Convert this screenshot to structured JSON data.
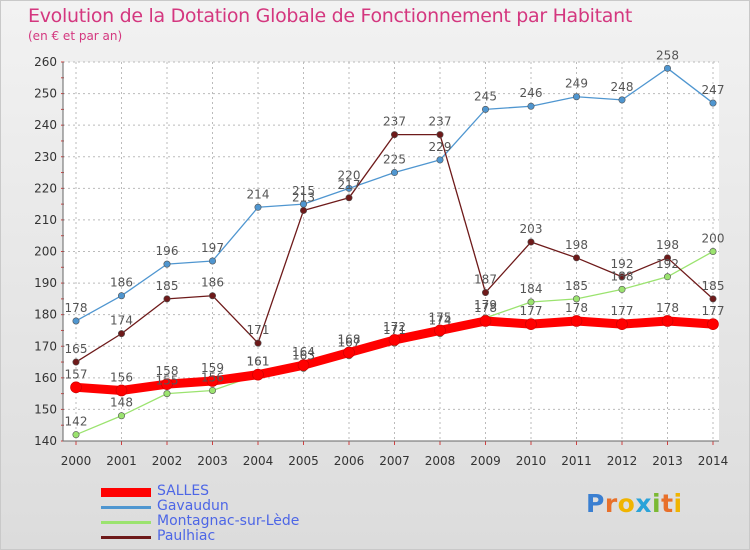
{
  "title": "Evolution de la Dotation Globale de Fonctionnement par Habitant",
  "subtitle": "(en € et par an)",
  "logo": {
    "text": "Proxiti",
    "letters": [
      "P",
      "r",
      "o",
      "x",
      "i",
      "t",
      "i"
    ],
    "colors": [
      "#3a7fd1",
      "#e8702a",
      "#f0b400",
      "#2aa3d9",
      "#7bb933",
      "#e8702a",
      "#f0b400"
    ]
  },
  "chart_data": {
    "type": "line",
    "title": "Evolution de la Dotation Globale de Fonctionnement par Habitant",
    "subtitle": "(en € et par an)",
    "x": [
      "2000",
      "2001",
      "2002",
      "2003",
      "2004",
      "2005",
      "2006",
      "2007",
      "2008",
      "2009",
      "2010",
      "2011",
      "2012",
      "2013",
      "2014"
    ],
    "ylim": [
      140,
      260
    ],
    "yticks": [
      140,
      150,
      160,
      170,
      180,
      190,
      200,
      210,
      220,
      230,
      240,
      250,
      260
    ],
    "grid": true,
    "legend_position": "bottom-left",
    "series": [
      {
        "name": "SALLES",
        "color": "#ff0000",
        "values": [
          157,
          156,
          158,
          159,
          161,
          164,
          168,
          172,
          175,
          178,
          177,
          178,
          177,
          178,
          177
        ]
      },
      {
        "name": "Gavaudun",
        "color": "#4f96d0",
        "values": [
          178,
          186,
          196,
          197,
          214,
          215,
          220,
          225,
          229,
          245,
          246,
          249,
          248,
          258,
          247
        ]
      },
      {
        "name": "Montagnac-sur-Lède",
        "color": "#9be36f",
        "values": [
          142,
          148,
          155,
          156,
          161,
          163,
          167,
          171,
          174,
          179,
          184,
          185,
          188,
          192,
          200
        ]
      },
      {
        "name": "Paulhiac",
        "color": "#6e1a1a",
        "values": [
          165,
          174,
          185,
          186,
          171,
          213,
          217,
          237,
          237,
          187,
          203,
          198,
          192,
          198,
          185
        ]
      }
    ]
  }
}
